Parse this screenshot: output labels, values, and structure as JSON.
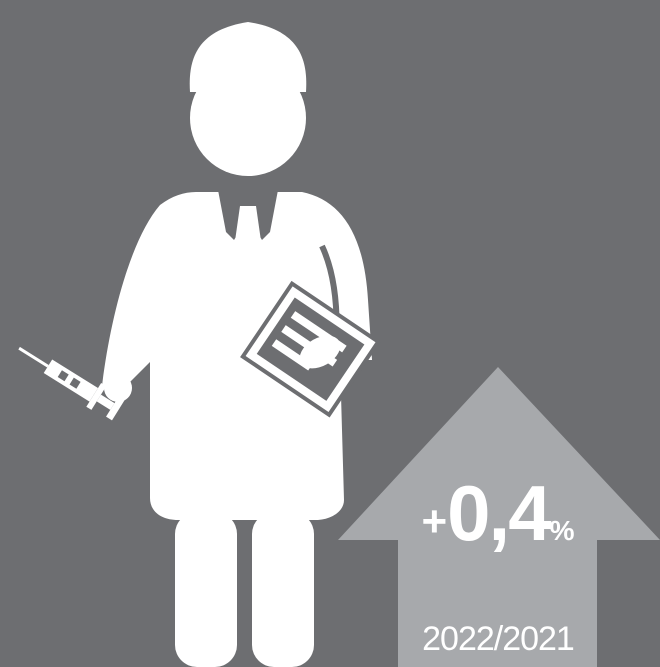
{
  "infographic": {
    "change_sign": "+",
    "change_value": "0,4",
    "change_unit": "%",
    "period": "2022/2021",
    "direction": "up"
  },
  "colors": {
    "background": "#6d6e71",
    "figure": "#ffffff",
    "arrow": "#a7a9ac",
    "text": "#ffffff"
  },
  "icons": [
    "doctor-icon",
    "syringe-icon",
    "clipboard-icon",
    "up-arrow-icon"
  ]
}
